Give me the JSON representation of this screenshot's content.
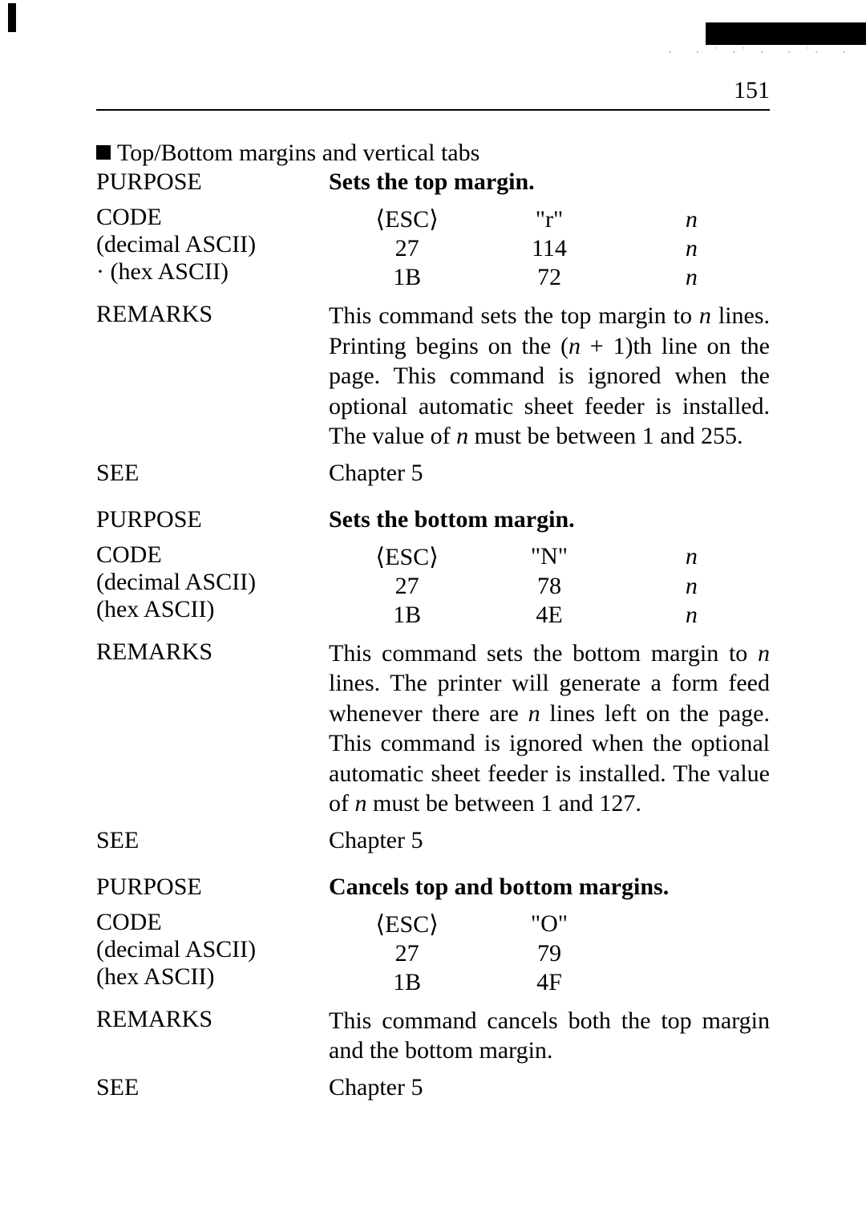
{
  "page_number": "151",
  "section_header": "Top/Bottom margins and vertical tabs",
  "entries": [
    {
      "purpose_label": "PURPOSE",
      "purpose_text": "Sets the top margin.",
      "code_label": "CODE",
      "dec_label": "(decimal ASCII)",
      "hex_label": "· (hex ASCII)",
      "esc": "⟨ESC⟩",
      "char": "\"r\"",
      "dec_esc": "27",
      "dec_char": "114",
      "hex_esc": "1B",
      "hex_char": "72",
      "n": "n",
      "remarks_label": "REMARKS",
      "remarks_pre": "This command sets the top margin to ",
      "remarks_n1": "n",
      "remarks_mid1": " lines. Printing begins on the (",
      "remarks_n2": "n",
      "remarks_mid2": " + 1)th line on the page. This command is ignored when the optional automatic sheet feeder is installed. The value of ",
      "remarks_n3": "n",
      "remarks_post": " must be between 1 and 255.",
      "see_label": "SEE",
      "see_text": "Chapter 5"
    },
    {
      "purpose_label": "PURPOSE",
      "purpose_text": "Sets the bottom margin.",
      "code_label": "CODE",
      "dec_label": "(decimal ASCII)",
      "hex_label": "(hex ASCII)",
      "esc": "⟨ESC⟩",
      "char": "\"N\"",
      "dec_esc": "27",
      "dec_char": "78",
      "hex_esc": "1B",
      "hex_char": "4E",
      "n": "n",
      "remarks_label": "REMARKS",
      "remarks_pre": "This command sets the bottom margin to ",
      "remarks_n1": "n",
      "remarks_mid1": " lines. The printer will generate a form feed whenever there are ",
      "remarks_n2": "n",
      "remarks_mid2": " lines left on the page. This command is ignored when the optional automatic sheet feeder is installed. The value of ",
      "remarks_n3": "n",
      "remarks_post": " must be between 1 and 127.",
      "see_label": "SEE",
      "see_text": "Chapter 5"
    },
    {
      "purpose_label": "PURPOSE",
      "purpose_text": "Cancels top and bottom margins.",
      "code_label": "CODE",
      "dec_label": "(decimal ASCII)",
      "hex_label": "(hex ASCII)",
      "esc": "⟨ESC⟩",
      "char": "\"O\"",
      "dec_esc": "27",
      "dec_char": "79",
      "hex_esc": "1B",
      "hex_char": "4F",
      "n": "",
      "remarks_label": "REMARKS",
      "remarks_full": "This command cancels both the top margin and the bottom margin.",
      "see_label": "SEE",
      "see_text": "Chapter 5"
    }
  ]
}
